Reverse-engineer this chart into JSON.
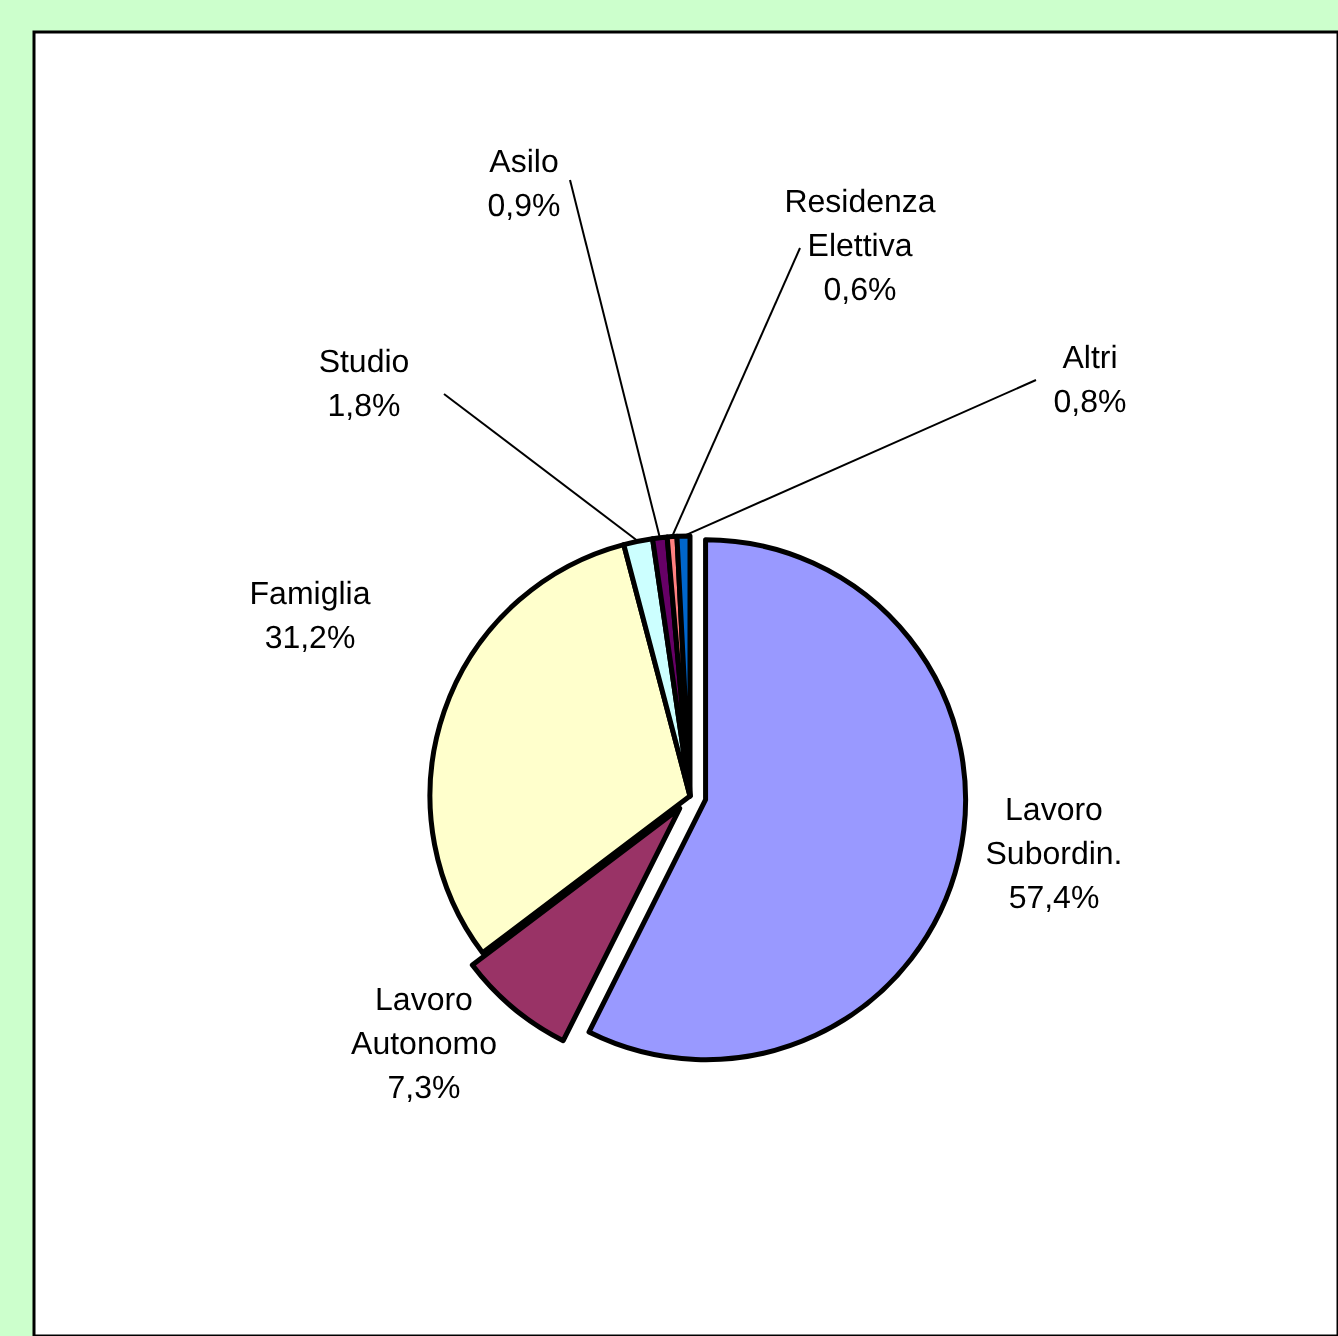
{
  "chart_data": {
    "type": "pie",
    "categories": [
      "Lavoro Subordin.",
      "Lavoro Autonomo",
      "Famiglia",
      "Studio",
      "Asilo",
      "Residenza Elettiva",
      "Altri"
    ],
    "values": [
      57.4,
      7.3,
      31.2,
      1.8,
      0.9,
      0.6,
      0.8
    ],
    "colors": [
      "#9999ff",
      "#993366",
      "#ffffcc",
      "#ccffff",
      "#660066",
      "#ff8080",
      "#0066cc"
    ],
    "value_labels": [
      "57,4%",
      "7,3%",
      "31,2%",
      "1,8%",
      "0,9%",
      "0,6%",
      "0,8%"
    ]
  }
}
